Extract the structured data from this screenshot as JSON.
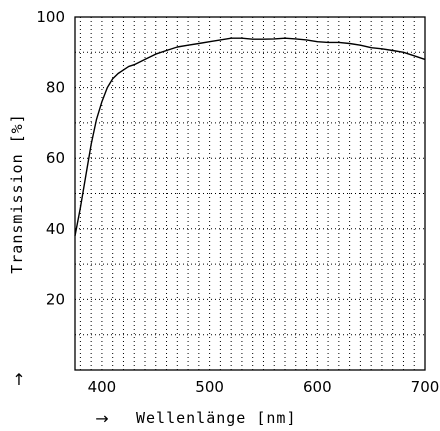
{
  "chart_data": {
    "type": "line",
    "title": "",
    "xlabel": "Wellenlänge [nm]",
    "ylabel": "Transmission [%]",
    "x_arrow": "→",
    "y_arrow": "↑",
    "xlim": [
      375,
      700
    ],
    "ylim": [
      0,
      100
    ],
    "x_ticks": [
      400,
      500,
      600,
      700
    ],
    "y_ticks": [
      20,
      40,
      60,
      80,
      100
    ],
    "x_minor_step": 10,
    "y_minor_step": 10,
    "grid": true,
    "series": [
      {
        "name": "",
        "x": [
          375,
          380,
          385,
          390,
          395,
          400,
          405,
          410,
          415,
          420,
          425,
          430,
          440,
          450,
          460,
          470,
          480,
          490,
          500,
          510,
          520,
          530,
          540,
          550,
          560,
          570,
          580,
          590,
          600,
          610,
          620,
          630,
          640,
          650,
          660,
          670,
          680,
          690,
          700
        ],
        "y": [
          38,
          46,
          55,
          64,
          71,
          76,
          80,
          82.5,
          84,
          85,
          86,
          86.5,
          88,
          89.5,
          90.5,
          91.5,
          92,
          92.5,
          93,
          93.5,
          94,
          94,
          93.7,
          93.7,
          93.8,
          94,
          93.8,
          93.5,
          93,
          92.8,
          92.8,
          92.5,
          92,
          91.3,
          91,
          90.5,
          90,
          89,
          88
        ]
      }
    ]
  }
}
